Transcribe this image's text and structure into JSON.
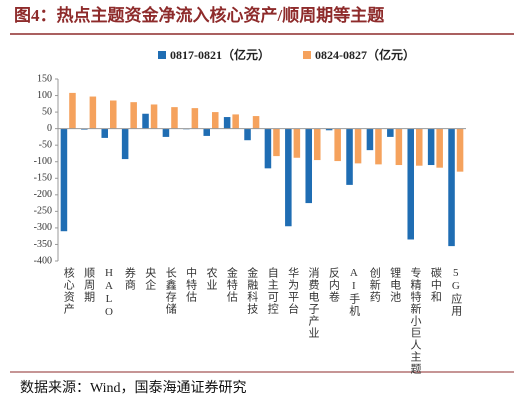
{
  "chart_data": {
    "type": "bar",
    "title": "图4：热点主题资金净流入核心资产/顺周期等主题",
    "source": "数据来源：Wind，国泰海通证券研究",
    "categories": [
      "核心资产",
      "顺周期",
      "HALO",
      "券商",
      "央企",
      "长鑫存储",
      "中特估",
      "农业",
      "金特估",
      "金融科技",
      "自主可控",
      "华为平台",
      "消费电子产业",
      "反内卷",
      "AI手机",
      "创新药",
      "锂电池",
      "专精特新小巨人主题",
      "碳中和",
      "5G应用"
    ],
    "series": [
      {
        "name": "0817-0821（亿元）",
        "color": "#1f6db3",
        "values": [
          -310,
          -3,
          -28,
          -92,
          45,
          -25,
          -2,
          -22,
          35,
          -35,
          -120,
          -295,
          -225,
          -5,
          -170,
          -65,
          -25,
          -335,
          -110,
          -355
        ]
      },
      {
        "name": "0824-0827（亿元）",
        "color": "#f5a25d",
        "values": [
          108,
          97,
          85,
          80,
          73,
          65,
          62,
          50,
          43,
          38,
          -83,
          -88,
          -95,
          -98,
          -105,
          -108,
          -110,
          -112,
          -118,
          -130
        ]
      }
    ],
    "ylim": [
      -400,
      150
    ],
    "yticks": [
      -400,
      -350,
      -300,
      -250,
      -200,
      -150,
      -100,
      -50,
      0,
      50,
      100,
      150
    ]
  }
}
